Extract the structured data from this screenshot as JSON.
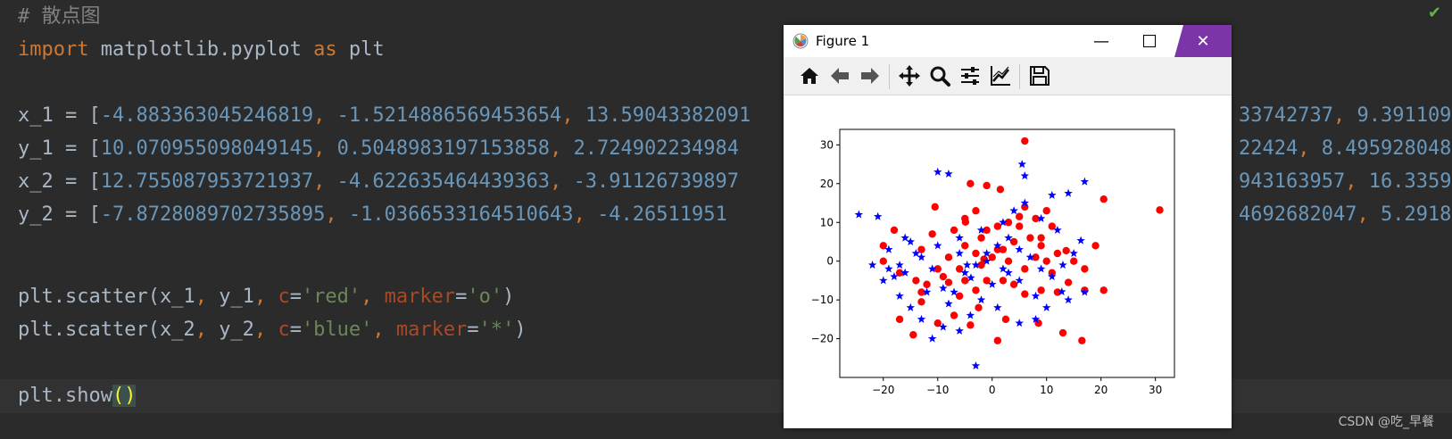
{
  "code": {
    "comment": "# 散点图",
    "import_kw": "import",
    "import_mod": " matplotlib.pyplot ",
    "as_kw": "as",
    "alias": " plt",
    "x1_prefix": "x_1 = [",
    "x1_vals": [
      "-4.883363045246819",
      "-1.5214886569453654",
      "13.59043382091",
      "33742737",
      "9.391109"
    ],
    "y1_prefix": "y_1 = [",
    "y1_vals": [
      "10.070955098049145",
      "0.5048983197153858",
      "2.724902234984",
      "22424",
      "8.495928048"
    ],
    "x2_prefix": "x_2 = [",
    "x2_vals": [
      "12.755087953721937",
      "-4.622635464439363",
      "-3.91126739897",
      "943163957",
      "16.3359"
    ],
    "y2_prefix": "y_2 = [",
    "y2_vals": [
      "-7.8728089702735895",
      "-1.0366533164510643",
      "-4.26511951",
      "4692682047",
      "5.2918"
    ],
    "scatter1": {
      "fn": "plt.scatter(x_1",
      "y": "y_1",
      "c_kw": "c",
      "c_val": "'red'",
      "m_kw": "marker",
      "m_val": "'o'",
      "close": ")"
    },
    "scatter2": {
      "fn": "plt.scatter(x_2",
      "y": "y_2",
      "c_kw": "c",
      "c_val": "'blue'",
      "m_kw": "marker",
      "m_val": "'*'",
      "close": ")"
    },
    "show": "plt.show",
    "show_paren": "()"
  },
  "colors": {
    "editor_bg": "#2b2b2b",
    "keyword": "#cc7832",
    "number": "#6897bb",
    "string": "#6a8759",
    "param": "#aa4926",
    "title_close_bg": "#7b35a8",
    "red_series": "#ff0000",
    "blue_series": "#0000ff"
  },
  "watermark": "CSDN @吃_早餐",
  "figure": {
    "title": "Figure 1",
    "tools": [
      "home-icon",
      "back-icon",
      "forward-icon",
      "pan-icon",
      "zoom-icon",
      "configure-subplots-icon",
      "edit-axis-icon",
      "save-icon"
    ]
  },
  "chart_data": {
    "type": "scatter",
    "title": "",
    "xlabel": "",
    "ylabel": "",
    "xlim": [
      -28,
      33.5
    ],
    "ylim": [
      -30,
      34
    ],
    "xticks": [
      -20,
      -10,
      0,
      10,
      20,
      30
    ],
    "yticks": [
      -20,
      -10,
      0,
      10,
      20,
      30
    ],
    "xtick_labels": [
      "−20",
      "−10",
      "0",
      "10",
      "20",
      "30"
    ],
    "ytick_labels": [
      "−20",
      "−10",
      "0",
      "10",
      "20",
      "30"
    ],
    "series": [
      {
        "color": "#ff0000",
        "marker": "o",
        "points": [
          [
            -4.9,
            10.1
          ],
          [
            -1.5,
            0.5
          ],
          [
            13.6,
            2.7
          ],
          [
            6,
            31
          ],
          [
            30.8,
            13.2
          ],
          [
            20.5,
            16
          ],
          [
            -4,
            20
          ],
          [
            -1,
            19.5
          ],
          [
            1.5,
            18.5
          ],
          [
            -10.5,
            14
          ],
          [
            -3,
            13
          ],
          [
            1,
            9
          ],
          [
            5,
            11.5
          ],
          [
            6,
            14
          ],
          [
            10,
            13
          ],
          [
            11,
            9
          ],
          [
            9,
            6
          ],
          [
            5,
            9
          ],
          [
            -5,
            11
          ],
          [
            -7,
            8
          ],
          [
            -11,
            7
          ],
          [
            -13,
            3
          ],
          [
            -18,
            8
          ],
          [
            -20,
            4
          ],
          [
            -20,
            0
          ],
          [
            -17,
            -3
          ],
          [
            -14,
            -5
          ],
          [
            -12,
            -6
          ],
          [
            -9,
            -4
          ],
          [
            -6,
            -2
          ],
          [
            -2,
            -1
          ],
          [
            0,
            1
          ],
          [
            2,
            3
          ],
          [
            4,
            5
          ],
          [
            7,
            6
          ],
          [
            9,
            4
          ],
          [
            12,
            2
          ],
          [
            15,
            0
          ],
          [
            17,
            -2
          ],
          [
            19,
            4
          ],
          [
            20.5,
            -7.5
          ],
          [
            17,
            -7.5
          ],
          [
            14,
            -5.5
          ],
          [
            12,
            -8
          ],
          [
            9,
            -7.5
          ],
          [
            6,
            -8.5
          ],
          [
            4,
            -6
          ],
          [
            2,
            -5
          ],
          [
            -1,
            -5
          ],
          [
            -3,
            -7.5
          ],
          [
            -5,
            -5
          ],
          [
            -8,
            -5.5
          ],
          [
            -13,
            -8
          ],
          [
            -13,
            -10.5
          ],
          [
            -17,
            -15
          ],
          [
            -10,
            -16
          ],
          [
            -7,
            -14
          ],
          [
            -4,
            -16.5
          ],
          [
            -2.5,
            -12
          ],
          [
            2.5,
            -15
          ],
          [
            8.5,
            -16
          ],
          [
            13,
            -18.5
          ],
          [
            16.5,
            -20.5
          ],
          [
            1,
            -20.5
          ],
          [
            -14.5,
            -19
          ],
          [
            -10,
            -2
          ],
          [
            -8,
            1
          ],
          [
            -5,
            4
          ],
          [
            -2,
            6
          ],
          [
            1,
            3
          ],
          [
            3,
            0
          ],
          [
            6,
            -2
          ],
          [
            8,
            1
          ],
          [
            10,
            0
          ],
          [
            11,
            -3
          ],
          [
            -1,
            8
          ],
          [
            3,
            10
          ],
          [
            8,
            11
          ],
          [
            -6,
            -9
          ],
          [
            -3,
            2
          ]
        ]
      },
      {
        "color": "#0000ff",
        "marker": "*",
        "points": [
          [
            12.8,
            -7.9
          ],
          [
            -4.6,
            -1
          ],
          [
            -3.9,
            -4.3
          ],
          [
            16.3,
            5.3
          ],
          [
            -24.5,
            12
          ],
          [
            -21,
            11.5
          ],
          [
            -10,
            23
          ],
          [
            -8,
            22.5
          ],
          [
            5.5,
            25
          ],
          [
            6,
            22
          ],
          [
            11,
            17
          ],
          [
            14,
            17.5
          ],
          [
            17,
            20.5
          ],
          [
            -20,
            -5
          ],
          [
            -22,
            -1
          ],
          [
            -19,
            3
          ],
          [
            -17,
            -1
          ],
          [
            -16,
            -3
          ],
          [
            -15,
            5
          ],
          [
            -13,
            1
          ],
          [
            -11,
            -2
          ],
          [
            -9,
            -7
          ],
          [
            -7,
            -8
          ],
          [
            -5,
            -3
          ],
          [
            -3,
            -1
          ],
          [
            -1,
            2
          ],
          [
            1,
            4
          ],
          [
            3,
            6
          ],
          [
            5,
            3
          ],
          [
            7,
            1
          ],
          [
            9,
            -2
          ],
          [
            11,
            -4
          ],
          [
            13,
            -1
          ],
          [
            15,
            2
          ],
          [
            17,
            -8
          ],
          [
            14,
            -10
          ],
          [
            10,
            -12
          ],
          [
            8,
            -15
          ],
          [
            5,
            -16
          ],
          [
            1,
            -12
          ],
          [
            -2,
            -10
          ],
          [
            -4,
            -14
          ],
          [
            -6,
            -18
          ],
          [
            -9,
            -17
          ],
          [
            -11,
            -20
          ],
          [
            -13,
            -15
          ],
          [
            -15,
            -12
          ],
          [
            -17,
            -9
          ],
          [
            -18,
            -4
          ],
          [
            -14,
            2
          ],
          [
            -10,
            4
          ],
          [
            -6,
            6
          ],
          [
            -2,
            8
          ],
          [
            2,
            10
          ],
          [
            4,
            13
          ],
          [
            6,
            15
          ],
          [
            9,
            11
          ],
          [
            12,
            8
          ],
          [
            3,
            -3
          ],
          [
            0,
            -6
          ],
          [
            -3,
            -27
          ],
          [
            -8,
            -11
          ],
          [
            -12,
            -8
          ],
          [
            -6,
            2
          ],
          [
            -1,
            0
          ],
          [
            2,
            -2
          ],
          [
            5,
            -5
          ],
          [
            8,
            -9
          ],
          [
            -19,
            -2
          ],
          [
            -16,
            6
          ]
        ]
      }
    ],
    "grid": false
  }
}
